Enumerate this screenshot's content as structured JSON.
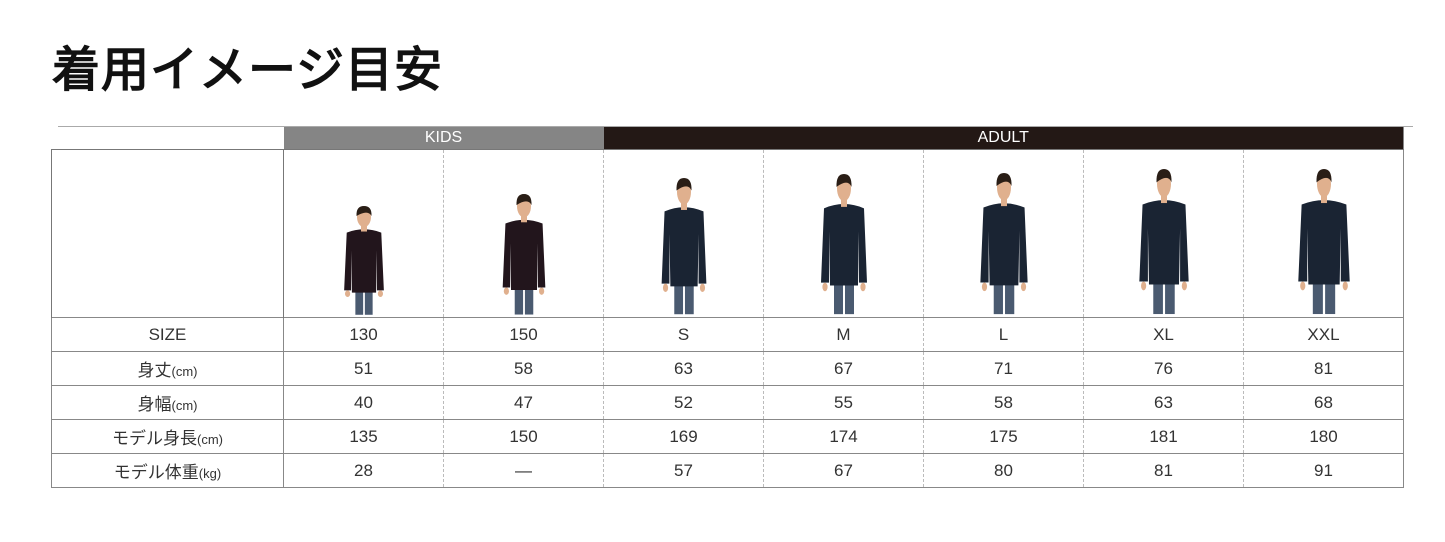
{
  "title": "着用イメージ目安",
  "groups": {
    "kids": "KIDS",
    "adult": "ADULT"
  },
  "colors": {
    "kids": "#858585",
    "adult": "#231815",
    "shirt": "#1a2433",
    "jeans": "#4a5a70",
    "skin": "#e0b08e",
    "hair": "#2a1e16"
  },
  "rows": [
    {
      "label": "SIZE",
      "unit": "",
      "values": [
        "130",
        "150",
        "S",
        "M",
        "L",
        "XL",
        "XXL"
      ]
    },
    {
      "label": "身丈",
      "unit": "(cm)",
      "values": [
        "51",
        "58",
        "63",
        "67",
        "71",
        "76",
        "81"
      ]
    },
    {
      "label": "身幅",
      "unit": "(cm)",
      "values": [
        "40",
        "47",
        "52",
        "55",
        "58",
        "63",
        "68"
      ]
    },
    {
      "label": "モデル身長",
      "unit": "(cm)",
      "values": [
        "135",
        "150",
        "169",
        "174",
        "175",
        "181",
        "180"
      ]
    },
    {
      "label": "モデル体重",
      "unit": "(kg)",
      "values": [
        "28",
        "—",
        "57",
        "67",
        "80",
        "81",
        "91"
      ]
    }
  ]
}
